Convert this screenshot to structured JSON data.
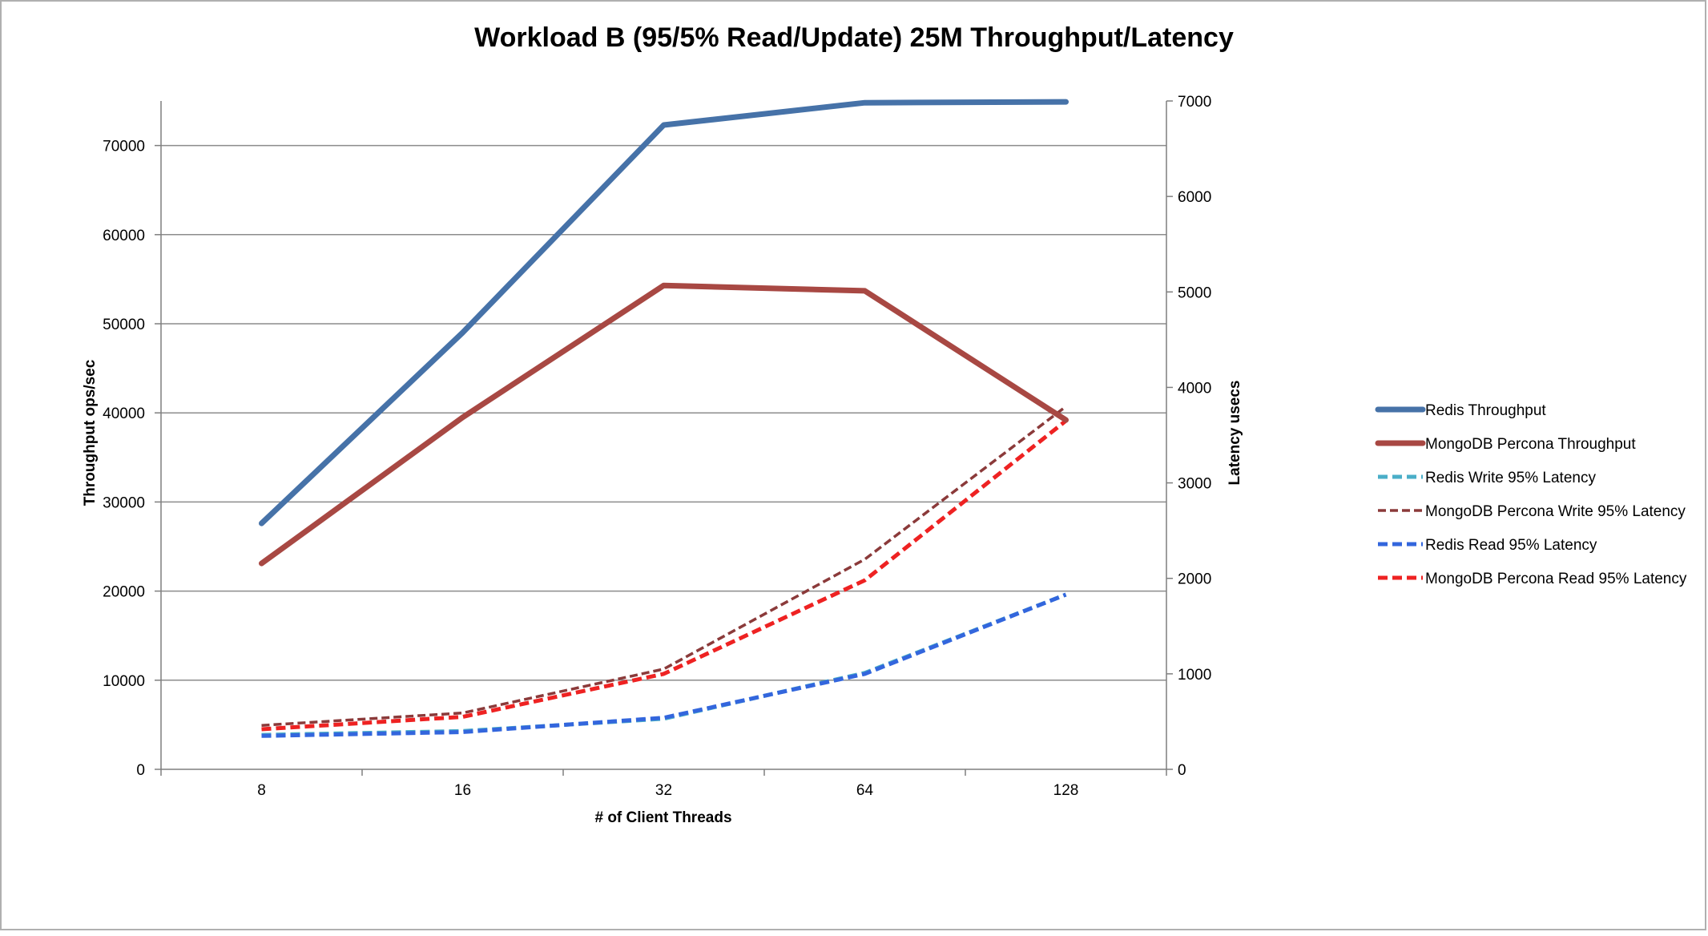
{
  "chart_data": {
    "type": "line",
    "title": "Workload B (95/5% Read/Update) 25M Throughput/Latency",
    "xlabel": "# of Client Threads",
    "ylabel": "Throughput ops/sec",
    "y2label": "Latency usecs",
    "categories": [
      "8",
      "16",
      "32",
      "64",
      "128"
    ],
    "ylim": [
      0,
      75000
    ],
    "yticks": [
      0,
      10000,
      20000,
      30000,
      40000,
      50000,
      60000,
      70000
    ],
    "y2lim": [
      0,
      7000
    ],
    "y2ticks": [
      0,
      1000,
      2000,
      3000,
      4000,
      5000,
      6000,
      7000
    ],
    "grid": true,
    "legend_position": "right",
    "series": [
      {
        "name": "Redis Throughput",
        "axis": "left",
        "style": "solid",
        "color": "#4672a8",
        "values": [
          27600,
          49000,
          72300,
          74800,
          74900
        ]
      },
      {
        "name": "MongoDB Percona Throughput",
        "axis": "left",
        "style": "solid",
        "color": "#a84843",
        "values": [
          23100,
          39500,
          54300,
          53700,
          39200
        ]
      },
      {
        "name": "Redis Write 95% Latency",
        "axis": "right",
        "style": "dashed",
        "color": "#4aaec8",
        "values": [
          360,
          400,
          530,
          1010,
          1830
        ]
      },
      {
        "name": "MongoDB Percona Write 95% Latency",
        "axis": "right",
        "style": "dashed",
        "color": "#8b3a3a",
        "values": [
          460,
          590,
          1050,
          2200,
          3800
        ]
      },
      {
        "name": "Redis Read 95% Latency",
        "axis": "right",
        "style": "dashed",
        "color": "#3366dd",
        "values": [
          350,
          390,
          540,
          1000,
          1830
        ]
      },
      {
        "name": "MongoDB Percona Read 95% Latency",
        "axis": "right",
        "style": "dashed",
        "color": "#ee2222",
        "values": [
          420,
          550,
          1000,
          1980,
          3650
        ]
      }
    ]
  }
}
